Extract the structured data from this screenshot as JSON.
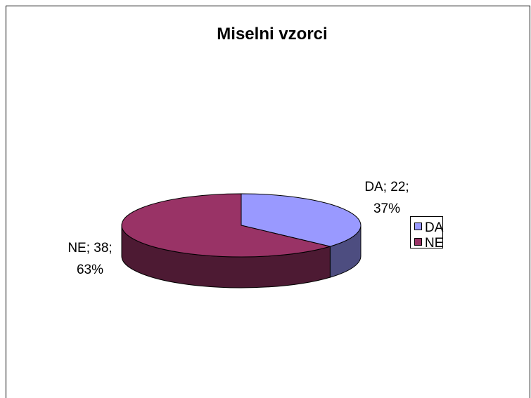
{
  "chart_data": {
    "type": "pie3d",
    "title": "Miselni vzorci",
    "categories": [
      "DA",
      "NE"
    ],
    "values": [
      22,
      38
    ],
    "value_labels": [
      "DA; 22; 37%",
      "NE; 38; 63%"
    ],
    "colors": [
      "#9999ff",
      "#993366"
    ],
    "legend": "right"
  }
}
